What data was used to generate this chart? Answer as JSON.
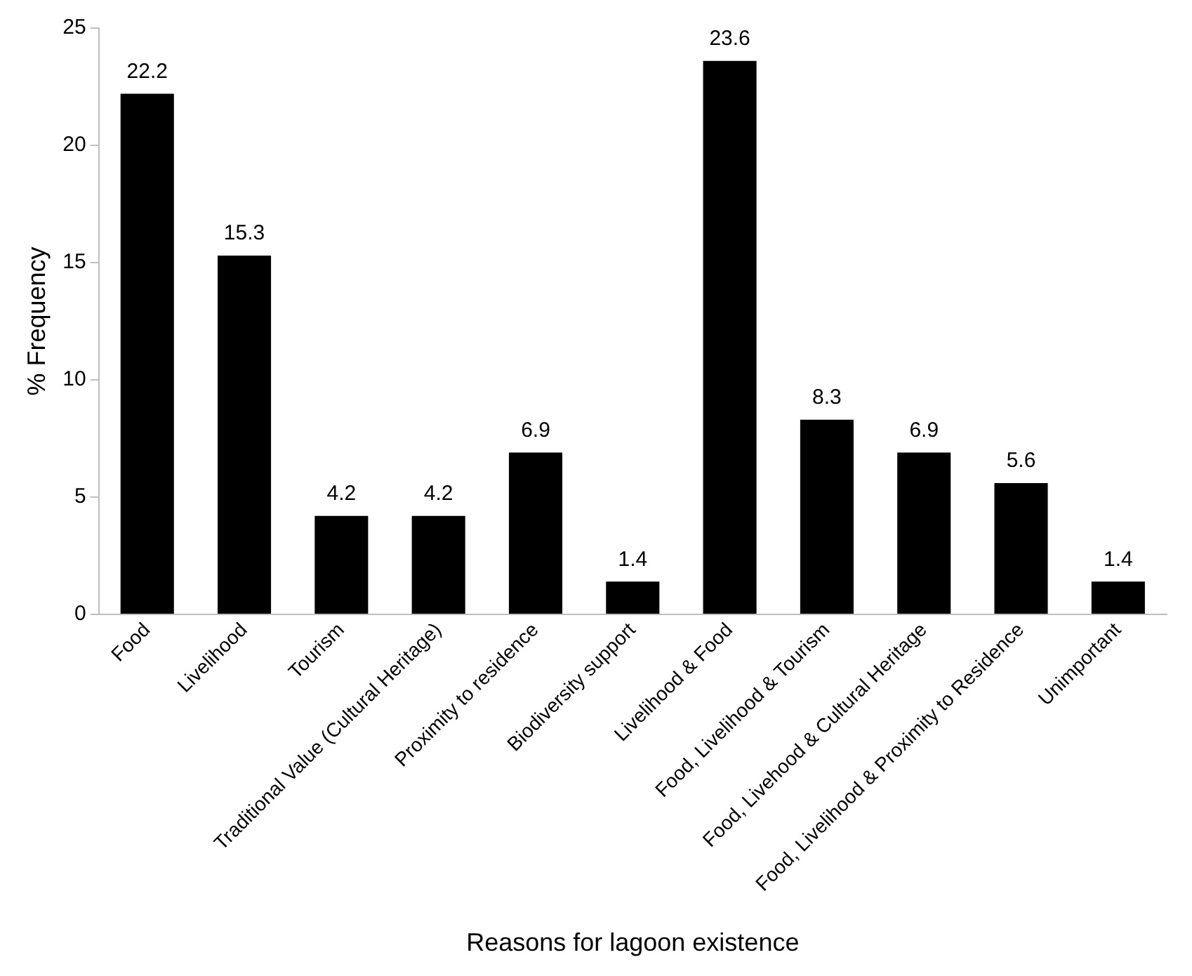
{
  "chart_data": {
    "type": "bar",
    "xlabel": "Reasons for lagoon existence",
    "ylabel": "% Frequency",
    "categories": [
      "Food",
      "Livelihood",
      "Tourism",
      "Traditional Value (Cultural Heritage)",
      "Proximity to residence",
      "Biodiversity support",
      "Livelihood & Food",
      "Food, Livelihood & Tourism",
      "Food, Livehood & Cultural Heritage",
      "Food, Livelihood & Proximity to Residence",
      "Unimportant"
    ],
    "values": [
      22.2,
      15.3,
      4.2,
      4.2,
      6.9,
      1.4,
      23.6,
      8.3,
      6.9,
      5.6,
      1.4
    ],
    "color": "#000000",
    "ylim": [
      0,
      25
    ],
    "yticks": [
      0,
      5,
      10,
      15,
      20,
      25
    ],
    "grid": false,
    "legend": false,
    "data_labels": true
  }
}
